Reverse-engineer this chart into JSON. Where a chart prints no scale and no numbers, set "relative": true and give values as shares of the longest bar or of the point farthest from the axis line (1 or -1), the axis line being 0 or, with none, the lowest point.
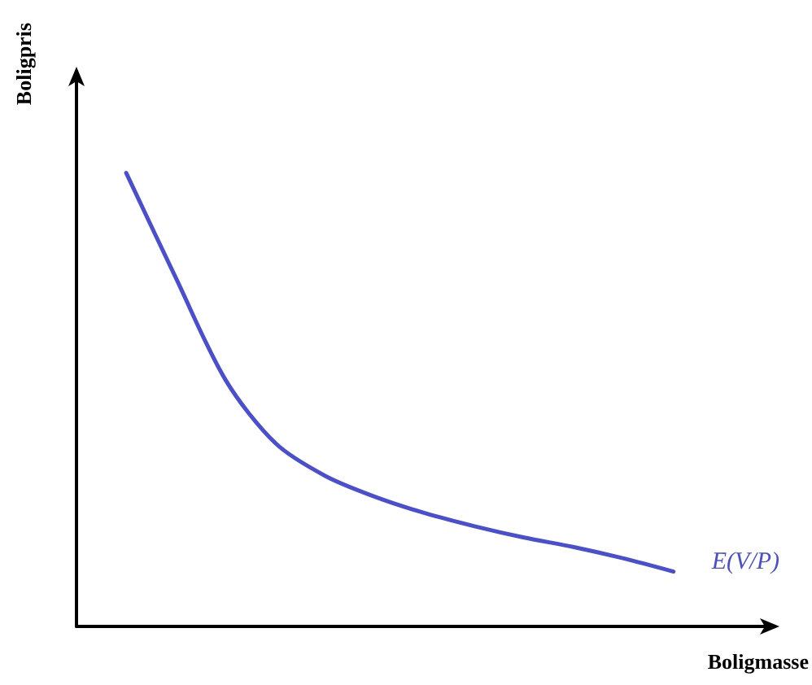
{
  "chart_data": {
    "type": "line",
    "relative": true,
    "ylabel": "Boligpris",
    "xlabel": "Boligmasse",
    "categories": [
      null,
      null,
      null,
      null,
      null,
      null,
      null,
      null,
      null,
      null,
      null,
      null,
      null,
      null,
      null
    ],
    "series": [
      {
        "color": "#4a4fd1",
        "values": [
          null,
          1.0,
          0.768,
          0.543,
          0.404,
          0.332,
          0.286,
          0.25,
          0.221,
          0.196,
          0.175,
          0.15,
          0.121,
          null,
          null
        ]
      }
    ],
    "annotations": [
      "E(V/P)"
    ],
    "grid": false,
    "marker": "none",
    "line_style": "solid"
  }
}
